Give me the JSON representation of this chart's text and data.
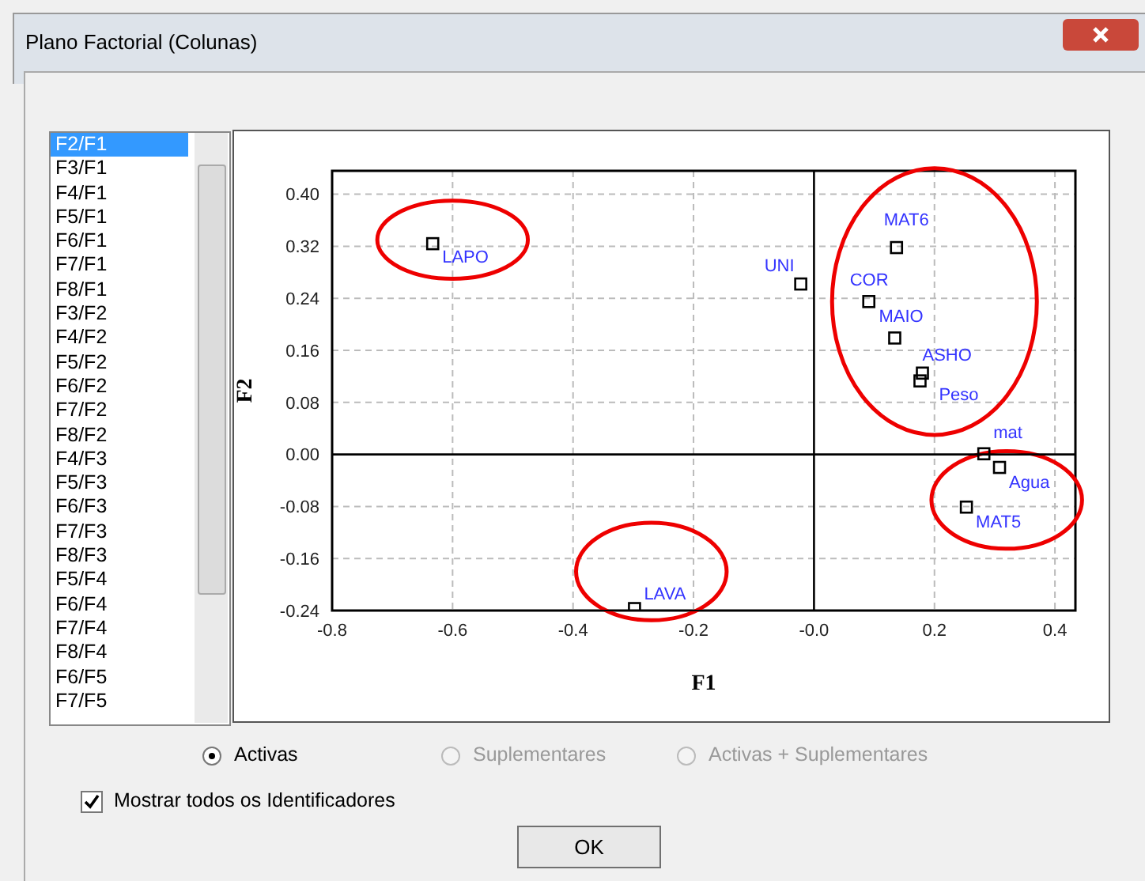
{
  "chart_data": {
    "type": "scatter",
    "title": "Plano Factorial (Colunas)",
    "xlabel": "F1",
    "ylabel": "F2",
    "xlim": [
      -0.8,
      0.434
    ],
    "ylim": [
      -0.24,
      0.436
    ],
    "xticks": [
      -0.8,
      -0.6,
      -0.4,
      -0.2,
      {
        "value": 0,
        "label": "-0.0"
      },
      0.2,
      0.4
    ],
    "yticks": [
      {
        "value": -0.24,
        "label": "-0.24"
      },
      {
        "value": -0.16,
        "label": "-0.16"
      },
      {
        "value": -0.08,
        "label": "-0.08"
      },
      {
        "value": 0,
        "label": "0.00"
      },
      {
        "value": 0.08,
        "label": "0.08"
      },
      {
        "value": 0.16,
        "label": "0.16"
      },
      {
        "value": 0.24,
        "label": "0.24"
      },
      {
        "value": 0.32,
        "label": "0.32"
      },
      {
        "value": 0.4,
        "label": "0.40"
      }
    ],
    "grid": true,
    "marker": "square",
    "legend": false,
    "series": [
      {
        "name": "LAPO",
        "color": "#000000",
        "x": [
          -0.633
        ],
        "values": [
          0.324
        ]
      },
      {
        "name": "UNI",
        "color": "#000000",
        "x": [
          -0.022
        ],
        "values": [
          0.262
        ]
      },
      {
        "name": "LAVA",
        "color": "#000000",
        "x": [
          -0.298
        ],
        "values": [
          -0.237
        ]
      },
      {
        "name": "MAT6",
        "color": "#000000",
        "x": [
          0.137
        ],
        "values": [
          0.318
        ]
      },
      {
        "name": "COR",
        "color": "#000000",
        "x": [
          0.091
        ],
        "values": [
          0.235
        ]
      },
      {
        "name": "MAIO",
        "color": "#000000",
        "x": [
          0.134
        ],
        "values": [
          0.179
        ]
      },
      {
        "name": "ASHO",
        "color": "#000000",
        "x": [
          0.18
        ],
        "values": [
          0.125
        ]
      },
      {
        "name": "Peso",
        "color": "#000000",
        "x": [
          0.176
        ],
        "values": [
          0.113
        ]
      },
      {
        "name": "mat",
        "color": "#000000",
        "x": [
          0.282
        ],
        "values": [
          0.001
        ]
      },
      {
        "name": "Agua",
        "color": "#000000",
        "x": [
          0.308
        ],
        "values": [
          -0.02
        ]
      },
      {
        "name": "MAT5",
        "color": "#000000",
        "x": [
          0.253
        ],
        "values": [
          -0.081
        ]
      }
    ],
    "annotations": [
      "F2/F1",
      "F3/F1",
      "F4/F1",
      "F5/F1",
      "F6/F1",
      "F7/F1",
      "F8/F1",
      "F3/F2",
      "F4/F2",
      "F5/F2",
      "F6/F2",
      "F7/F2",
      "F8/F2",
      "F4/F3",
      "F5/F3",
      "F6/F3",
      "F7/F3",
      "F8/F3",
      "F5/F4",
      "F6/F4",
      "F7/F4",
      "F8/F4",
      "F6/F5",
      "F7/F5",
      "Activas",
      "Suplementares",
      "Activas + Suplementares",
      "Mostrar todos os Identificadores",
      "OK"
    ]
  }
}
